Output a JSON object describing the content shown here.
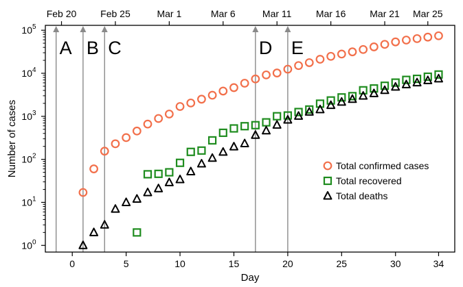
{
  "chart_data": {
    "type": "scatter",
    "xlabel": "Day",
    "ylabel": "Number of cases",
    "yscale": "log",
    "xlim": [
      -2.5,
      35.5
    ],
    "ylim": [
      0.7,
      130000
    ],
    "grid": false,
    "legend_position": "center-right",
    "x_ticks": [
      0,
      5,
      10,
      15,
      20,
      25,
      30,
      34
    ],
    "y_ticks": [
      {
        "value": 1,
        "base": "10",
        "exp": "0"
      },
      {
        "value": 10,
        "base": "10",
        "exp": "1"
      },
      {
        "value": 100,
        "base": "10",
        "exp": "2"
      },
      {
        "value": 1000,
        "base": "10",
        "exp": "3"
      },
      {
        "value": 10000,
        "base": "10",
        "exp": "4"
      },
      {
        "value": 100000,
        "base": "10",
        "exp": "5"
      }
    ],
    "top_axis_ticks": [
      {
        "day": -1,
        "label": "Feb 20"
      },
      {
        "day": 4,
        "label": "Feb 25"
      },
      {
        "day": 9,
        "label": "Mar 1"
      },
      {
        "day": 14,
        "label": "Mar 6"
      },
      {
        "day": 19,
        "label": "Mar 11"
      },
      {
        "day": 24,
        "label": "Mar 16"
      },
      {
        "day": 29,
        "label": "Mar 21"
      },
      {
        "day": 33,
        "label": "Mar 25"
      }
    ],
    "events": [
      {
        "label": "A",
        "x": -1.5
      },
      {
        "label": "B",
        "x": 1
      },
      {
        "label": "C",
        "x": 3
      },
      {
        "label": "D",
        "x": 17
      },
      {
        "label": "E",
        "x": 20
      }
    ],
    "series": [
      {
        "name": "Total confirmed cases",
        "marker": "circle",
        "color": "#f26f4a",
        "x": [
          1,
          2,
          3,
          4,
          5,
          6,
          7,
          8,
          9,
          10,
          11,
          12,
          13,
          14,
          15,
          16,
          17,
          18,
          19,
          20,
          21,
          22,
          23,
          24,
          25,
          26,
          27,
          28,
          29,
          30,
          31,
          32,
          33,
          34
        ],
        "y": [
          17,
          60,
          155,
          230,
          320,
          455,
          660,
          890,
          1130,
          1690,
          2040,
          2500,
          3090,
          3860,
          4640,
          5880,
          7380,
          9170,
          10150,
          12460,
          15110,
          17660,
          21160,
          24750,
          27980,
          31500,
          35710,
          41040,
          47020,
          53580,
          59140,
          63930,
          69180,
          74390
        ]
      },
      {
        "name": "Total recovered",
        "marker": "square",
        "color": "#1e8c1e",
        "x": [
          6,
          7,
          8,
          9,
          10,
          11,
          12,
          13,
          14,
          15,
          16,
          17,
          18,
          19,
          20,
          21,
          22,
          23,
          24,
          25,
          26,
          27,
          28,
          29,
          30,
          31,
          32,
          33,
          34
        ],
        "y": [
          2,
          45,
          46,
          50,
          83,
          149,
          160,
          276,
          414,
          523,
          589,
          622,
          724,
          1004,
          1045,
          1258,
          1439,
          1966,
          2335,
          2749,
          2941,
          4025,
          4440,
          5129,
          6072,
          7024,
          7432,
          8326,
          9362
        ]
      },
      {
        "name": "Total deaths",
        "marker": "triangle",
        "color": "#000000",
        "x": [
          1,
          2,
          3,
          4,
          5,
          6,
          7,
          8,
          9,
          10,
          11,
          12,
          13,
          14,
          15,
          16,
          17,
          18,
          19,
          20,
          21,
          22,
          23,
          24,
          25,
          26,
          27,
          28,
          29,
          30,
          31,
          32,
          33,
          34
        ],
        "y": [
          1,
          2,
          3,
          7,
          10,
          12,
          17,
          21,
          29,
          34,
          52,
          79,
          107,
          148,
          197,
          233,
          366,
          463,
          631,
          827,
          1016,
          1266,
          1441,
          1809,
          2158,
          2503,
          2978,
          3405,
          4032,
          4825,
          5476,
          6077,
          6820,
          7503
        ]
      }
    ]
  }
}
